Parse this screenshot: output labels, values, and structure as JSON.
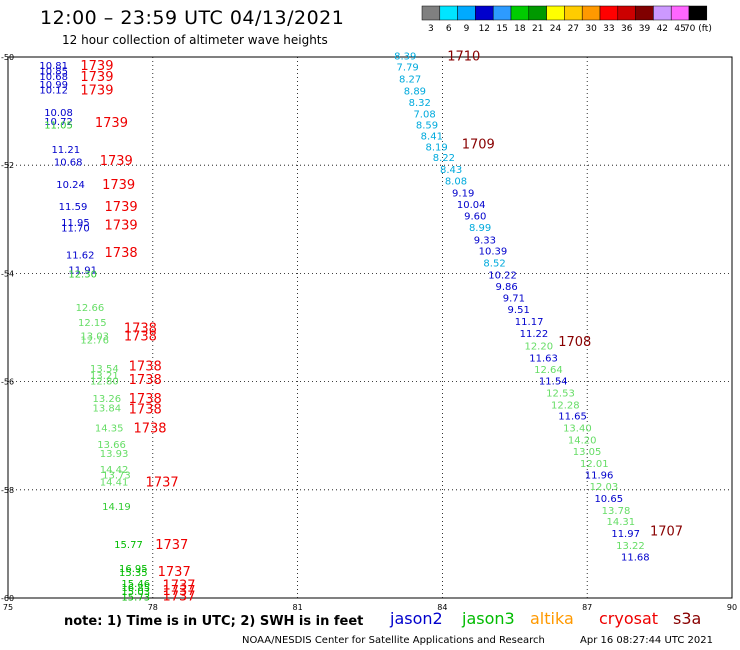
{
  "title": "12:00 – 23:59 UTC 04/13/2021",
  "subtitle": "12 hour collection of altimeter wave heights",
  "legend": {
    "labels": [
      "3",
      "6",
      "9",
      "12",
      "15",
      "18",
      "21",
      "24",
      "27",
      "30",
      "33",
      "36",
      "39",
      "42",
      "45",
      "70 (ft)"
    ],
    "colors": [
      "#808080",
      "#00e5ff",
      "#00aaff",
      "#0000cc",
      "#2d9bff",
      "#00cc00",
      "#009900",
      "#ffff00",
      "#ffcc00",
      "#ff9900",
      "#ff0000",
      "#cc0000",
      "#800000",
      "#cc99ff",
      "#ff66ff",
      "#000000"
    ]
  },
  "axes": {
    "x_ticks": [
      "75",
      "78",
      "81",
      "84",
      "87",
      "90"
    ],
    "y_ticks": [
      "-50",
      "-52",
      "-54",
      "-56",
      "-58",
      "-60"
    ]
  },
  "satellite_colors": {
    "jason2": "#0000cc",
    "jason3": "#00bb00",
    "altika": "#ff9900",
    "cryosat": "#ee0000",
    "s3a": "#880000"
  },
  "tracks": [
    {
      "name": "track-west",
      "time_labels": [
        {
          "text": "1739",
          "lon": 76.5,
          "lat": -50.15,
          "color": "#ee0000"
        },
        {
          "text": "1739",
          "lon": 76.5,
          "lat": -50.35,
          "color": "#ee0000"
        },
        {
          "text": "1739",
          "lon": 76.5,
          "lat": -50.6,
          "color": "#ee0000"
        },
        {
          "text": "1739",
          "lon": 76.8,
          "lat": -51.2,
          "color": "#ee0000"
        },
        {
          "text": "1739",
          "lon": 76.9,
          "lat": -51.9,
          "color": "#ee0000"
        },
        {
          "text": "1739",
          "lon": 76.95,
          "lat": -52.35,
          "color": "#ee0000"
        },
        {
          "text": "1739",
          "lon": 77.0,
          "lat": -52.75,
          "color": "#ee0000"
        },
        {
          "text": "1739",
          "lon": 77.0,
          "lat": -53.1,
          "color": "#ee0000"
        },
        {
          "text": "1738",
          "lon": 77.0,
          "lat": -53.6,
          "color": "#ee0000"
        },
        {
          "text": "1738",
          "lon": 77.4,
          "lat": -55.0,
          "color": "#ee0000"
        },
        {
          "text": "1738",
          "lon": 77.4,
          "lat": -55.15,
          "color": "#ee0000"
        },
        {
          "text": "1738",
          "lon": 77.5,
          "lat": -55.7,
          "color": "#ee0000"
        },
        {
          "text": "1738",
          "lon": 77.5,
          "lat": -55.95,
          "color": "#ee0000"
        },
        {
          "text": "1738",
          "lon": 77.5,
          "lat": -56.3,
          "color": "#ee0000"
        },
        {
          "text": "1738",
          "lon": 77.5,
          "lat": -56.5,
          "color": "#ee0000"
        },
        {
          "text": "1738",
          "lon": 77.6,
          "lat": -56.85,
          "color": "#ee0000"
        },
        {
          "text": "1737",
          "lon": 77.85,
          "lat": -57.85,
          "color": "#ee0000"
        },
        {
          "text": "1737",
          "lon": 78.05,
          "lat": -59.0,
          "color": "#ee0000"
        },
        {
          "text": "1737",
          "lon": 78.1,
          "lat": -59.5,
          "color": "#ee0000"
        },
        {
          "text": "1737",
          "lon": 78.2,
          "lat": -59.75,
          "color": "#ee0000"
        },
        {
          "text": "1737",
          "lon": 78.2,
          "lat": -59.85,
          "color": "#ee0000"
        },
        {
          "text": "1737",
          "lon": 78.2,
          "lat": -59.95,
          "color": "#ee0000"
        }
      ],
      "values": [
        {
          "text": "10.81",
          "lon": 75.65,
          "lat": -50.15,
          "color": "#0000cc"
        },
        {
          "text": "10.85",
          "lon": 75.65,
          "lat": -50.25,
          "color": "#0000cc"
        },
        {
          "text": "10.68",
          "lon": 75.65,
          "lat": -50.35,
          "color": "#0000cc"
        },
        {
          "text": "10.99",
          "lon": 75.65,
          "lat": -50.5,
          "color": "#0000cc"
        },
        {
          "text": "10.12",
          "lon": 75.65,
          "lat": -50.6,
          "color": "#0000cc"
        },
        {
          "text": "10.08",
          "lon": 75.75,
          "lat": -51.02,
          "color": "#0000cc"
        },
        {
          "text": "10.72",
          "lon": 75.75,
          "lat": -51.18,
          "color": "#0000cc"
        },
        {
          "text": "11.05",
          "lon": 75.75,
          "lat": -51.25,
          "color": "#33cc33"
        },
        {
          "text": "11.21",
          "lon": 75.9,
          "lat": -51.7,
          "color": "#0000cc"
        },
        {
          "text": "10.68",
          "lon": 75.95,
          "lat": -51.93,
          "color": "#0000cc"
        },
        {
          "text": "10.24",
          "lon": 76.0,
          "lat": -52.35,
          "color": "#0000cc"
        },
        {
          "text": "11.59",
          "lon": 76.05,
          "lat": -52.75,
          "color": "#0000cc"
        },
        {
          "text": "11.95",
          "lon": 76.1,
          "lat": -53.05,
          "color": "#0000cc"
        },
        {
          "text": "11.70",
          "lon": 76.1,
          "lat": -53.15,
          "color": "#0000cc"
        },
        {
          "text": "11.62",
          "lon": 76.2,
          "lat": -53.65,
          "color": "#0000cc"
        },
        {
          "text": "11.91",
          "lon": 76.25,
          "lat": -53.93,
          "color": "#0000cc"
        },
        {
          "text": "12.30",
          "lon": 76.25,
          "lat": -54.0,
          "color": "#33cc33"
        },
        {
          "text": "12.66",
          "lon": 76.4,
          "lat": -54.62,
          "color": "#66dd66"
        },
        {
          "text": "12.15",
          "lon": 76.45,
          "lat": -54.9,
          "color": "#66dd66"
        },
        {
          "text": "13.03",
          "lon": 76.5,
          "lat": -55.15,
          "color": "#66dd66"
        },
        {
          "text": "12.76",
          "lon": 76.5,
          "lat": -55.22,
          "color": "#66dd66"
        },
        {
          "text": "13.54",
          "lon": 76.7,
          "lat": -55.75,
          "color": "#66dd66"
        },
        {
          "text": "13.21",
          "lon": 76.7,
          "lat": -55.88,
          "color": "#66dd66"
        },
        {
          "text": "12.80",
          "lon": 76.7,
          "lat": -55.98,
          "color": "#66dd66"
        },
        {
          "text": "13.26",
          "lon": 76.75,
          "lat": -56.3,
          "color": "#66dd66"
        },
        {
          "text": "13.84",
          "lon": 76.75,
          "lat": -56.48,
          "color": "#66dd66"
        },
        {
          "text": "14.35",
          "lon": 76.8,
          "lat": -56.85,
          "color": "#66dd66"
        },
        {
          "text": "13.66",
          "lon": 76.85,
          "lat": -57.15,
          "color": "#66dd66"
        },
        {
          "text": "13.93",
          "lon": 76.9,
          "lat": -57.32,
          "color": "#66dd66"
        },
        {
          "text": "14.42",
          "lon": 76.9,
          "lat": -57.62,
          "color": "#66dd66"
        },
        {
          "text": "13.73",
          "lon": 76.95,
          "lat": -57.72,
          "color": "#66dd66"
        },
        {
          "text": "14.41",
          "lon": 76.9,
          "lat": -57.85,
          "color": "#66dd66"
        },
        {
          "text": "14.19",
          "lon": 76.95,
          "lat": -58.3,
          "color": "#33cc33"
        },
        {
          "text": "15.77",
          "lon": 77.2,
          "lat": -59.0,
          "color": "#00bb00"
        },
        {
          "text": "16.95",
          "lon": 77.3,
          "lat": -59.45,
          "color": "#00bb00"
        },
        {
          "text": "15.35",
          "lon": 77.3,
          "lat": -59.52,
          "color": "#00bb00"
        },
        {
          "text": "15.46",
          "lon": 77.35,
          "lat": -59.72,
          "color": "#00bb00"
        },
        {
          "text": "16.85",
          "lon": 77.35,
          "lat": -59.8,
          "color": "#00bb00"
        },
        {
          "text": "15.03",
          "lon": 77.35,
          "lat": -59.87,
          "color": "#00bb00"
        },
        {
          "text": "15.73",
          "lon": 77.35,
          "lat": -59.97,
          "color": "#00bb00"
        }
      ]
    },
    {
      "name": "track-east",
      "time_labels": [
        {
          "text": "1710",
          "lon": 84.1,
          "lat": -49.97,
          "color": "#880000"
        },
        {
          "text": "1709",
          "lon": 84.4,
          "lat": -51.6,
          "color": "#880000"
        },
        {
          "text": "1708",
          "lon": 86.4,
          "lat": -55.25,
          "color": "#880000"
        },
        {
          "text": "1707",
          "lon": 88.3,
          "lat": -58.75,
          "color": "#880000"
        }
      ],
      "values": [
        {
          "text": "8.39",
          "lon": 83.0,
          "lat": -49.97,
          "color": "#00aadd"
        },
        {
          "text": "7.79",
          "lon": 83.05,
          "lat": -50.18,
          "color": "#00aadd"
        },
        {
          "text": "8.27",
          "lon": 83.1,
          "lat": -50.4,
          "color": "#00aadd"
        },
        {
          "text": "8.89",
          "lon": 83.2,
          "lat": -50.62,
          "color": "#00aadd"
        },
        {
          "text": "8.32",
          "lon": 83.3,
          "lat": -50.83,
          "color": "#00aadd"
        },
        {
          "text": "7.08",
          "lon": 83.4,
          "lat": -51.04,
          "color": "#00aadd"
        },
        {
          "text": "8.59",
          "lon": 83.45,
          "lat": -51.25,
          "color": "#00aadd"
        },
        {
          "text": "8.41",
          "lon": 83.55,
          "lat": -51.45,
          "color": "#00aadd"
        },
        {
          "text": "8.19",
          "lon": 83.65,
          "lat": -51.65,
          "color": "#00aadd"
        },
        {
          "text": "8.22",
          "lon": 83.8,
          "lat": -51.85,
          "color": "#00aadd"
        },
        {
          "text": "8.43",
          "lon": 83.95,
          "lat": -52.07,
          "color": "#00aadd"
        },
        {
          "text": "8.08",
          "lon": 84.05,
          "lat": -52.28,
          "color": "#00aadd"
        },
        {
          "text": "9.19",
          "lon": 84.2,
          "lat": -52.5,
          "color": "#0000cc"
        },
        {
          "text": "10.04",
          "lon": 84.3,
          "lat": -52.72,
          "color": "#0000cc"
        },
        {
          "text": "9.60",
          "lon": 84.45,
          "lat": -52.93,
          "color": "#0000cc"
        },
        {
          "text": "8.99",
          "lon": 84.55,
          "lat": -53.14,
          "color": "#00aadd"
        },
        {
          "text": "9.33",
          "lon": 84.65,
          "lat": -53.37,
          "color": "#0000cc"
        },
        {
          "text": "10.39",
          "lon": 84.75,
          "lat": -53.58,
          "color": "#0000cc"
        },
        {
          "text": "8.52",
          "lon": 84.85,
          "lat": -53.8,
          "color": "#00aadd"
        },
        {
          "text": "10.22",
          "lon": 84.95,
          "lat": -54.02,
          "color": "#0000cc"
        },
        {
          "text": "9.86",
          "lon": 85.1,
          "lat": -54.23,
          "color": "#0000cc"
        },
        {
          "text": "9.71",
          "lon": 85.25,
          "lat": -54.45,
          "color": "#0000cc"
        },
        {
          "text": "9.51",
          "lon": 85.35,
          "lat": -54.66,
          "color": "#0000cc"
        },
        {
          "text": "11.17",
          "lon": 85.5,
          "lat": -54.88,
          "color": "#0000cc"
        },
        {
          "text": "11.22",
          "lon": 85.6,
          "lat": -55.1,
          "color": "#0000cc"
        },
        {
          "text": "12.20",
          "lon": 85.7,
          "lat": -55.33,
          "color": "#66dd66"
        },
        {
          "text": "11.63",
          "lon": 85.8,
          "lat": -55.55,
          "color": "#0000cc"
        },
        {
          "text": "12.64",
          "lon": 85.9,
          "lat": -55.77,
          "color": "#66dd66"
        },
        {
          "text": "11.54",
          "lon": 86.0,
          "lat": -55.98,
          "color": "#0000cc"
        },
        {
          "text": "12.53",
          "lon": 86.15,
          "lat": -56.2,
          "color": "#66dd66"
        },
        {
          "text": "12.28",
          "lon": 86.25,
          "lat": -56.42,
          "color": "#66dd66"
        },
        {
          "text": "11.65",
          "lon": 86.4,
          "lat": -56.63,
          "color": "#0000cc"
        },
        {
          "text": "13.40",
          "lon": 86.5,
          "lat": -56.85,
          "color": "#66dd66"
        },
        {
          "text": "14.20",
          "lon": 86.6,
          "lat": -57.07,
          "color": "#66dd66"
        },
        {
          "text": "13.05",
          "lon": 86.7,
          "lat": -57.28,
          "color": "#66dd66"
        },
        {
          "text": "12.01",
          "lon": 86.85,
          "lat": -57.5,
          "color": "#66dd66"
        },
        {
          "text": "11.96",
          "lon": 86.95,
          "lat": -57.72,
          "color": "#0000cc"
        },
        {
          "text": "12.03",
          "lon": 87.05,
          "lat": -57.93,
          "color": "#66dd66"
        },
        {
          "text": "10.65",
          "lon": 87.15,
          "lat": -58.15,
          "color": "#0000cc"
        },
        {
          "text": "13.78",
          "lon": 87.3,
          "lat": -58.37,
          "color": "#66dd66"
        },
        {
          "text": "14.31",
          "lon": 87.4,
          "lat": -58.58,
          "color": "#66dd66"
        },
        {
          "text": "11.97",
          "lon": 87.5,
          "lat": -58.8,
          "color": "#0000cc"
        },
        {
          "text": "13.22",
          "lon": 87.6,
          "lat": -59.02,
          "color": "#66dd66"
        },
        {
          "text": "11.68",
          "lon": 87.7,
          "lat": -59.23,
          "color": "#0000cc"
        }
      ]
    }
  ],
  "footer": {
    "note": "note: 1) Time is in UTC; 2) SWH is in feet",
    "satellites": [
      "jason2",
      "jason3",
      "altika",
      "cryosat",
      "s3a"
    ],
    "credit": "NOAA/NESDIS Center for Satellite Applications and Research",
    "timestamp": "Apr 16 08:27:44 UTC 2021"
  }
}
